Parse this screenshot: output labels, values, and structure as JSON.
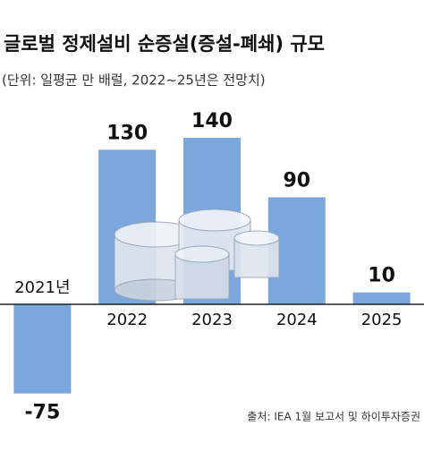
{
  "chart_data": {
    "type": "bar",
    "title": "글로벌 정제설비 순증설(증설-폐쇄) 규모",
    "subtitle": "(단위: 일평균 만 배럴, 2022~25년은 전망치)",
    "source": "출처: IEA 1월 보고서 및 하이투자증권",
    "categories": [
      "2021년",
      "2022",
      "2023",
      "2024",
      "2025"
    ],
    "values": [
      -75,
      130,
      140,
      90,
      10
    ],
    "color": "#7ba7dd"
  }
}
